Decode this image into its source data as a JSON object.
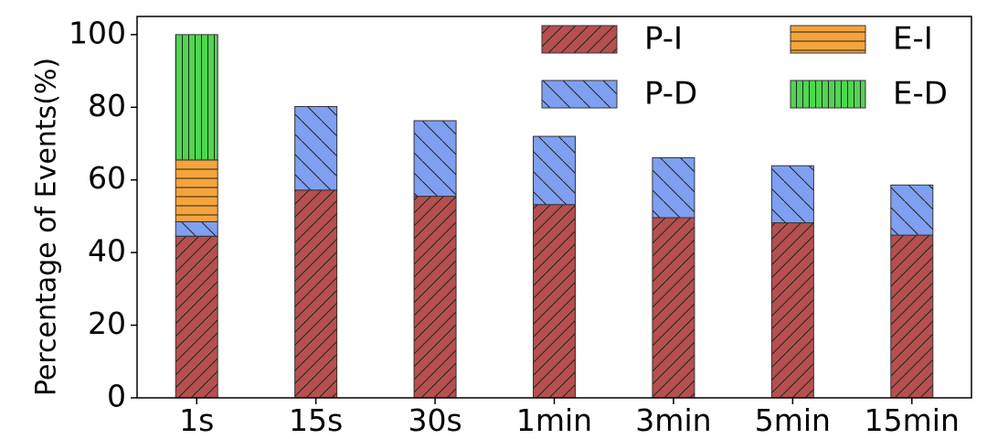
{
  "chart_data": {
    "type": "bar",
    "stacked": true,
    "categories": [
      "1s",
      "15s",
      "30s",
      "1min",
      "3min",
      "5min",
      "15min"
    ],
    "series": [
      {
        "name": "P-I",
        "color": "#b5504f",
        "hatch": "diagonal-up",
        "values": [
          44.5,
          57.2,
          55.5,
          53.2,
          49.6,
          48.2,
          44.8
        ]
      },
      {
        "name": "P-D",
        "color": "#7f9ff0",
        "hatch": "diagonal-down",
        "values": [
          4.0,
          23.0,
          20.8,
          18.8,
          16.5,
          15.7,
          13.8
        ]
      },
      {
        "name": "E-I",
        "color": "#f5a43a",
        "hatch": "horizontal",
        "values": [
          17.0,
          0,
          0,
          0,
          0,
          0,
          0
        ]
      },
      {
        "name": "E-D",
        "color": "#4fd64f",
        "hatch": "vertical",
        "values": [
          34.5,
          0,
          0,
          0,
          0,
          0,
          0
        ]
      }
    ],
    "ylabel": "Percentage of Events(%)",
    "xlabel": "",
    "ylim": [
      0,
      105
    ],
    "yticks": [
      0,
      20,
      40,
      60,
      80,
      100
    ],
    "grid": false,
    "legend": "top-right, 2 columns"
  }
}
